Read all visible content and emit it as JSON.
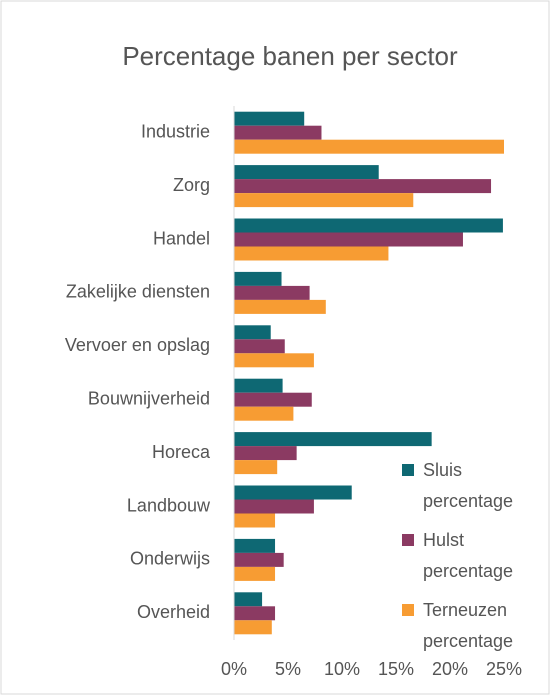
{
  "chart_data": {
    "type": "barh",
    "title": "Percentage banen per sector",
    "categories": [
      "Industrie",
      "Zorg",
      "Handel",
      "Zakelijke diensten",
      "Vervoer en opslag",
      "Bouwnijverheid",
      "Horeca",
      "Landbouw",
      "Onderwijs",
      "Overheid"
    ],
    "series": [
      {
        "name": "Sluis percentage",
        "color": "#0e6873",
        "values": [
          6.5,
          13.4,
          24.9,
          4.4,
          3.4,
          4.5,
          18.3,
          10.9,
          3.8,
          2.6
        ]
      },
      {
        "name": "Hulst percentage",
        "color": "#8b3a62",
        "values": [
          8.1,
          23.8,
          21.2,
          7.0,
          4.7,
          7.2,
          5.8,
          7.4,
          4.6,
          3.8
        ]
      },
      {
        "name": "Terneuzen percentage",
        "color": "#f79c33",
        "values": [
          25.0,
          16.6,
          14.3,
          8.5,
          7.4,
          5.5,
          4.0,
          3.8,
          3.8,
          3.5
        ]
      }
    ],
    "xlim": [
      0,
      25
    ],
    "xticks": [
      {
        "value": 0,
        "label": "0%"
      },
      {
        "value": 5,
        "label": "5%"
      },
      {
        "value": 10,
        "label": "10%"
      },
      {
        "value": 15,
        "label": "15%"
      },
      {
        "value": 20,
        "label": "20%"
      },
      {
        "value": 25,
        "label": "25%"
      }
    ],
    "legend": "right"
  }
}
